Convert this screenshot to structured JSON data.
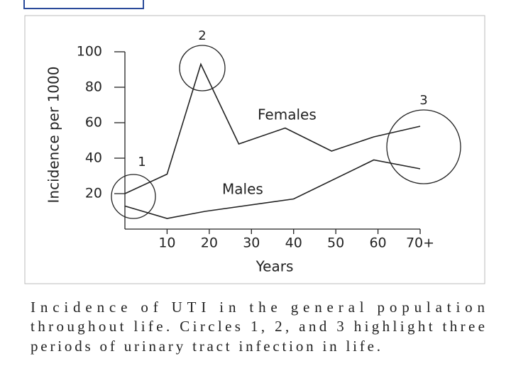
{
  "chart_data": {
    "type": "line",
    "x_label": "Years",
    "y_label": "Incidence per 1000",
    "xlim": [
      0,
      70
    ],
    "ylim": [
      0,
      100
    ],
    "xticks": [
      10,
      20,
      30,
      40,
      50,
      60,
      {
        "value": 70,
        "label": "70+"
      }
    ],
    "yticks": [
      20,
      40,
      60,
      80,
      100
    ],
    "series": [
      {
        "name": "Females",
        "color": "#222222",
        "x": [
          0,
          10,
          18,
          27,
          38,
          49,
          59,
          70
        ],
        "values": [
          20,
          31,
          93,
          48,
          57,
          44,
          52,
          58
        ]
      },
      {
        "name": "Males",
        "color": "#222222",
        "x": [
          0,
          10,
          19,
          40,
          59,
          70
        ],
        "values": [
          13,
          6,
          10,
          17,
          39,
          34
        ]
      }
    ],
    "annotations": [
      "1",
      "2",
      "3"
    ],
    "caption": [
      "Incidence of UTI in the general population",
      "throughout life. Circles 1, 2, and 3 highlight three",
      "periods of urinary tract infection in life."
    ]
  }
}
